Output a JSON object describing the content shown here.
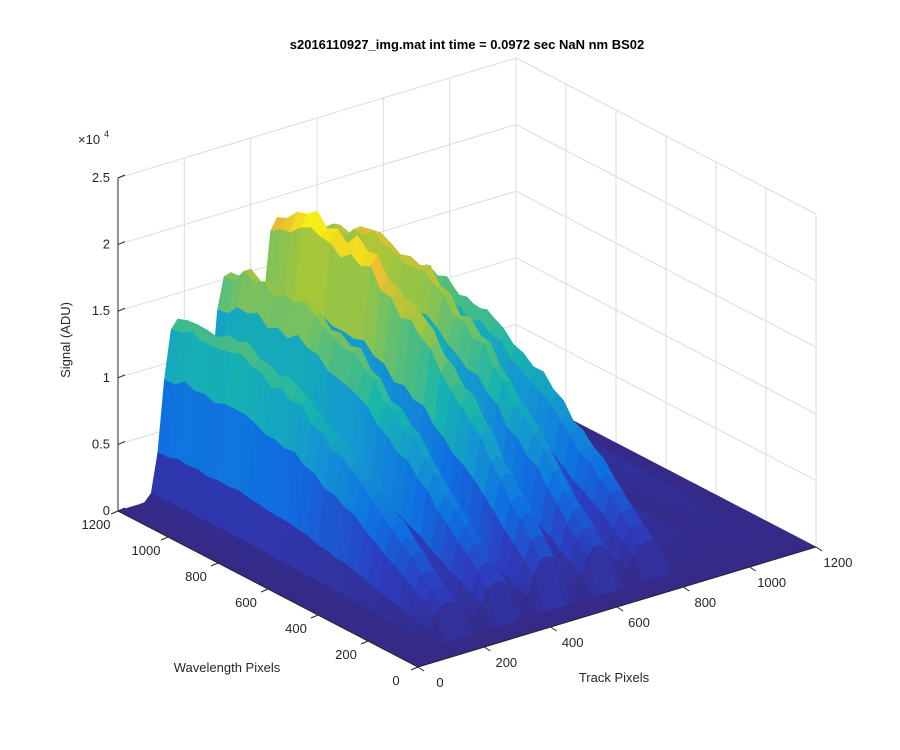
{
  "chart_data": {
    "type": "surface",
    "title": "s2016110927_img.mat int time = 0.0972 sec  NaN nm BS02",
    "xlabel": "Track Pixels",
    "ylabel": "Wavelength Pixels",
    "zlabel": "Signal (ADU)",
    "z_exponent_label": "×10",
    "z_exponent_power": "4",
    "xlim": [
      0,
      1200
    ],
    "ylim": [
      0,
      1200
    ],
    "zlim": [
      0,
      25000
    ],
    "x_ticks": [
      "0",
      "200",
      "400",
      "600",
      "800",
      "1000",
      "1200"
    ],
    "y_ticks": [
      "0",
      "200",
      "400",
      "600",
      "800",
      "1000",
      "1200"
    ],
    "z_ticks": [
      "0",
      "0.5",
      "1",
      "1.5",
      "2",
      "2.5"
    ],
    "grid": true,
    "colormap": "parula",
    "colors": {
      "low": "#352a87",
      "mid_low": "#0f7fd9",
      "mid": "#15b5ae",
      "mid_high": "#a6c63a",
      "high": "#f9fb0e"
    },
    "peaks": [
      {
        "track_center": 180,
        "track_width": 55,
        "amplitude": 13000
      },
      {
        "track_center": 330,
        "track_width": 55,
        "amplitude": 15500
      },
      {
        "track_center": 480,
        "track_width": 55,
        "amplitude": 19000
      },
      {
        "track_center": 630,
        "track_width": 55,
        "amplitude": 17000
      },
      {
        "track_center": 780,
        "track_width": 55,
        "amplitude": 13500
      },
      {
        "track_center": 930,
        "track_width": 55,
        "amplitude": 2000
      },
      {
        "track_center": 1080,
        "track_width": 55,
        "amplitude": 1200
      }
    ],
    "wavelength_envelope": {
      "start": 100,
      "end": 1200,
      "peak_position": 900
    }
  }
}
